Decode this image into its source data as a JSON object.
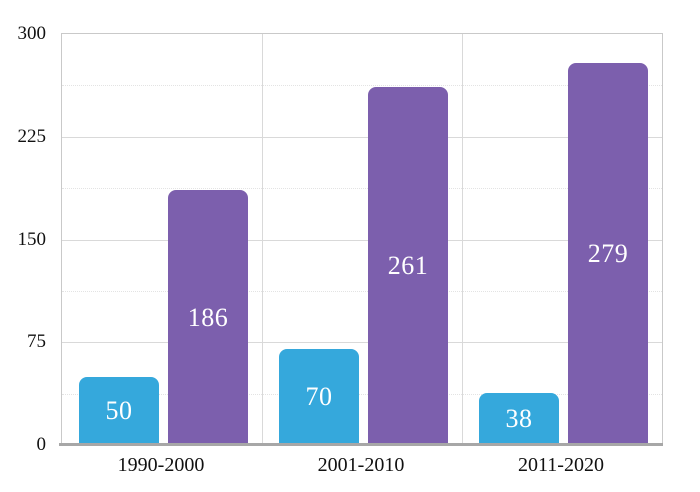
{
  "chart_data": {
    "type": "bar",
    "categories": [
      "1990-2000",
      "2001-2010",
      "2011-2020"
    ],
    "series": [
      {
        "id": "series-blue",
        "color": "#35a8dc",
        "values": [
          50,
          70,
          38
        ]
      },
      {
        "id": "series-purple",
        "color": "#7c5fad",
        "values": [
          186,
          261,
          279
        ]
      }
    ],
    "ylim": [
      0,
      300
    ],
    "yticks": [
      0,
      75,
      150,
      225,
      300
    ],
    "minor_gridline_step": 37.5,
    "grid": "major-solid, minor-dotted, vertical separators between categories",
    "legend_position": "none",
    "value_labels": "inside bars, white, vertically centered",
    "title": "",
    "xlabel": "",
    "ylabel": ""
  },
  "colors": {
    "background": "#ffffff",
    "bar_blue": "#35a8dc",
    "bar_purple": "#7c5fad",
    "gridline_major": "#d9d9d9",
    "gridline_minor": "#e3e3e3",
    "plot_border": "#c9c9c9",
    "axis_line": "#a7a7a7",
    "tick_text": "#111111",
    "value_label_text": "#ffffff"
  }
}
